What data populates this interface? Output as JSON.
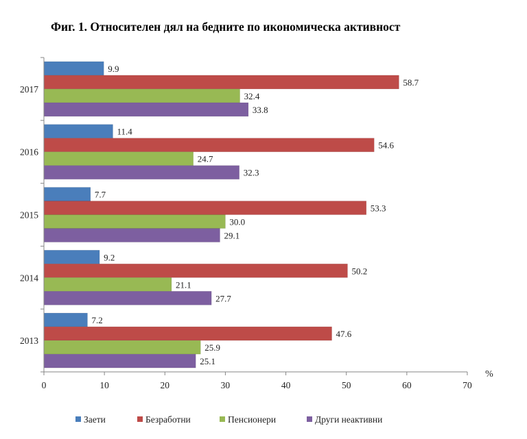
{
  "chart_data": {
    "type": "bar",
    "orientation": "horizontal",
    "title": "Фиг. 1. Относителен дял на бедните по икономическа активност",
    "unit_label": "%",
    "categories": [
      "2017",
      "2016",
      "2015",
      "2014",
      "2013"
    ],
    "series": [
      {
        "name": "Заети",
        "color": "#4a7ebb",
        "values": [
          9.9,
          11.4,
          7.7,
          9.2,
          7.2
        ],
        "labels": [
          "9.9",
          "11.4",
          "7.7",
          "9.2",
          "7.2"
        ]
      },
      {
        "name": "Безработни",
        "color": "#be4b48",
        "values": [
          58.7,
          54.6,
          53.3,
          50.2,
          47.6
        ],
        "labels": [
          "58.7",
          "54.6",
          "53.3",
          "50.2",
          "47.6"
        ]
      },
      {
        "name": "Пенсионери",
        "color": "#98b954",
        "values": [
          32.4,
          24.7,
          30.0,
          21.1,
          25.9
        ],
        "labels": [
          "32.4",
          "24.7",
          "30.0",
          "21.1",
          "25.9"
        ]
      },
      {
        "name": "Други неактивни",
        "color": "#7d5fa0",
        "values": [
          33.8,
          32.3,
          29.1,
          27.7,
          25.1
        ],
        "labels": [
          "33.8",
          "32.3",
          "29.1",
          "27.7",
          "25.1"
        ]
      }
    ],
    "xlim": [
      0,
      70
    ],
    "xticks": [
      "0",
      "10",
      "20",
      "30",
      "40",
      "50",
      "60",
      "70"
    ],
    "grid": false,
    "legend_position": "bottom"
  }
}
